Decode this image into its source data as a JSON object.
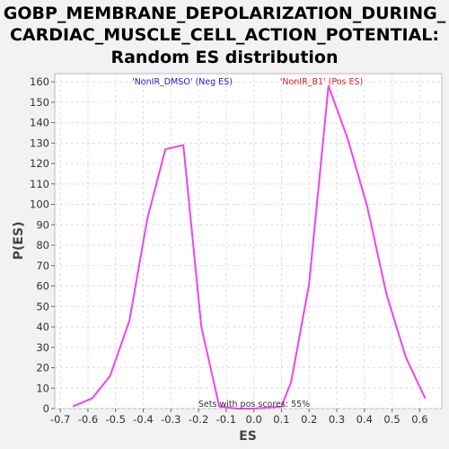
{
  "chart_data": {
    "type": "line",
    "title_lines": [
      "GOBP_MEMBRANE_DEPOLARIZATION_DURING_",
      "CARDIAC_MUSCLE_CELL_ACTION_POTENTIAL:",
      "Random ES distribution"
    ],
    "xlabel": "ES",
    "ylabel": "P(ES)",
    "xlim": [
      -0.72,
      0.68
    ],
    "ylim": [
      0,
      164
    ],
    "xticks": [
      -0.7,
      -0.6,
      -0.5,
      -0.4,
      -0.3,
      -0.2,
      -0.1,
      0.0,
      0.1,
      0.2,
      0.3,
      0.4,
      0.5,
      0.6
    ],
    "xtick_labels": [
      "-0.7",
      "-0.6",
      "-0.5",
      "-0.4",
      "-0.3",
      "-0.2",
      "-0.1",
      "0.0",
      "0.1",
      "0.2",
      "0.3",
      "0.4",
      "0.5",
      "0.6"
    ],
    "yticks": [
      0,
      10,
      20,
      30,
      40,
      50,
      60,
      70,
      80,
      90,
      100,
      110,
      120,
      130,
      140,
      150,
      160
    ],
    "ytick_labels": [
      "0",
      "10",
      "20",
      "30",
      "40",
      "50",
      "60",
      "70",
      "80",
      "90",
      "100",
      "110",
      "120",
      "130",
      "140",
      "150",
      "160"
    ],
    "grid": true,
    "series": [
      {
        "color": "#ee44ee",
        "x": [
          -0.655,
          -0.585,
          -0.52,
          -0.45,
          -0.385,
          -0.32,
          -0.255,
          -0.19,
          -0.125,
          -0.06,
          0.0,
          0.1,
          0.135,
          0.2,
          0.27,
          0.34,
          0.41,
          0.48,
          0.55,
          0.62
        ],
        "y": [
          1,
          5,
          16,
          43,
          93,
          127,
          129,
          40,
          1,
          0,
          0,
          1,
          13,
          61,
          158,
          132,
          99,
          56,
          25,
          5
        ]
      }
    ],
    "legend": [
      {
        "text": "'NonIR_DMSO' (Neg ES)",
        "color": "#2222cc"
      },
      {
        "text": "'NonIR_B1' (Pos ES)",
        "color": "#dd2222"
      }
    ],
    "annotation": "Sets with pos scores: 55%"
  }
}
